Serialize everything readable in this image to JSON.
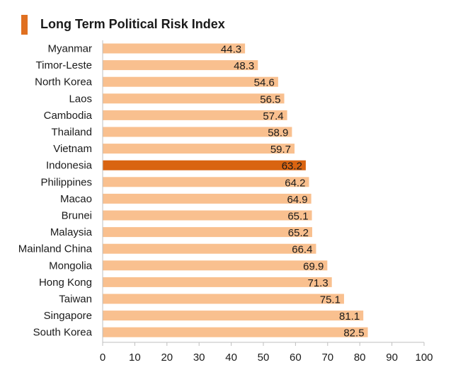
{
  "colors": {
    "bar": "#f9c08f",
    "highlight": "#d96411",
    "title_accent": "#e07020",
    "axis": "#bfbfbf",
    "text": "#1a1a1a"
  },
  "chart_data": {
    "type": "bar",
    "orientation": "horizontal",
    "title": "Long Term Political Risk Index",
    "xlabel": "",
    "ylabel": "",
    "xlim": [
      0,
      100
    ],
    "xticks": [
      0,
      10,
      20,
      30,
      40,
      50,
      60,
      70,
      80,
      90,
      100
    ],
    "grid": false,
    "highlight_category": "Indonesia",
    "categories": [
      "Myanmar",
      "Timor-Leste",
      "North Korea",
      "Laos",
      "Cambodia",
      "Thailand",
      "Vietnam",
      "Indonesia",
      "Philippines",
      "Macao",
      "Brunei",
      "Malaysia",
      "Mainland China",
      "Mongolia",
      "Hong Kong",
      "Taiwan",
      "Singapore",
      "South Korea"
    ],
    "values": [
      44.3,
      48.3,
      54.6,
      56.5,
      57.4,
      58.9,
      59.7,
      63.2,
      64.2,
      64.9,
      65.1,
      65.2,
      66.4,
      69.9,
      71.3,
      75.1,
      81.1,
      82.5
    ],
    "value_labels": [
      "44.3",
      "48.3",
      "54.6",
      "56.5",
      "57.4",
      "58.9",
      "59.7",
      "63.2",
      "64.2",
      "64.9",
      "65.1",
      "65.2",
      "66.4",
      "69.9",
      "71.3",
      "75.1",
      "81.1",
      "82.5"
    ]
  }
}
